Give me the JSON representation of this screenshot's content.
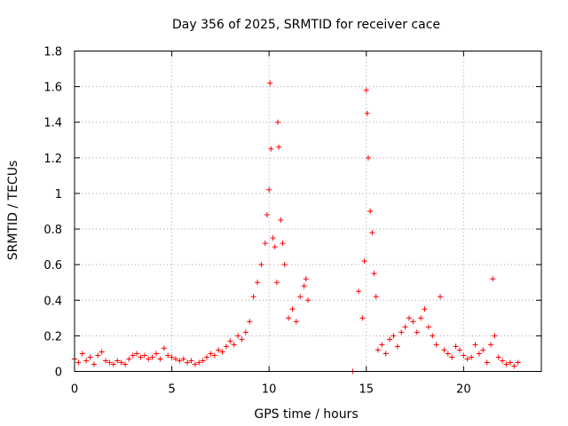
{
  "chart_data": {
    "type": "scatter",
    "title": "Day 356 of 2025, SRMTID for receiver cace",
    "xlabel": "GPS time / hours",
    "ylabel": "SRMTID / TECUs",
    "xlim": [
      0,
      24
    ],
    "ylim": [
      0,
      1.8
    ],
    "xticks": [
      0,
      5,
      10,
      15,
      20
    ],
    "xtick_labels": [
      "0",
      "5",
      "10",
      "15",
      "20"
    ],
    "yticks": [
      0,
      0.2,
      0.4,
      0.6,
      0.8,
      1,
      1.2,
      1.4,
      1.6,
      1.8
    ],
    "ytick_labels": [
      "0",
      "0.2",
      "0.4",
      "0.6",
      "0.8",
      "1",
      "1.2",
      "1.4",
      "1.6",
      "1.8"
    ],
    "grid": true,
    "legend": "none",
    "marker": "+",
    "color": "#ff0000",
    "series": [
      {
        "name": "SRMTID",
        "x": [
          0.0,
          0.2,
          0.4,
          0.6,
          0.8,
          1.0,
          1.2,
          1.4,
          1.6,
          1.8,
          2.0,
          2.2,
          2.4,
          2.6,
          2.8,
          3.0,
          3.2,
          3.4,
          3.6,
          3.8,
          4.0,
          4.2,
          4.4,
          4.6,
          4.8,
          5.0,
          5.2,
          5.4,
          5.6,
          5.8,
          6.0,
          6.2,
          6.4,
          6.6,
          6.8,
          7.0,
          7.2,
          7.4,
          7.6,
          7.8,
          8.0,
          8.2,
          8.4,
          8.6,
          8.8,
          9.0,
          9.2,
          9.4,
          9.6,
          9.8,
          9.9,
          10.0,
          10.05,
          10.1,
          10.2,
          10.3,
          10.4,
          10.45,
          10.5,
          10.6,
          10.7,
          10.8,
          11.0,
          11.2,
          11.4,
          11.6,
          11.8,
          11.9,
          12.0,
          14.3,
          14.6,
          14.8,
          14.9,
          15.0,
          15.05,
          15.1,
          15.2,
          15.3,
          15.4,
          15.5,
          15.6,
          15.8,
          16.0,
          16.2,
          16.4,
          16.6,
          16.8,
          17.0,
          17.2,
          17.4,
          17.6,
          17.8,
          18.0,
          18.2,
          18.4,
          18.6,
          18.8,
          19.0,
          19.2,
          19.4,
          19.6,
          19.8,
          20.0,
          20.2,
          20.4,
          20.6,
          20.8,
          21.0,
          21.2,
          21.4,
          21.5,
          21.6,
          21.8,
          22.0,
          22.2,
          22.4,
          22.6,
          22.8
        ],
        "y": [
          0.07,
          0.05,
          0.1,
          0.06,
          0.08,
          0.04,
          0.09,
          0.11,
          0.06,
          0.05,
          0.04,
          0.06,
          0.05,
          0.04,
          0.07,
          0.09,
          0.1,
          0.08,
          0.09,
          0.07,
          0.08,
          0.1,
          0.07,
          0.13,
          0.09,
          0.08,
          0.07,
          0.06,
          0.07,
          0.05,
          0.06,
          0.04,
          0.05,
          0.06,
          0.08,
          0.1,
          0.09,
          0.12,
          0.11,
          0.14,
          0.17,
          0.15,
          0.2,
          0.18,
          0.22,
          0.28,
          0.42,
          0.5,
          0.6,
          0.72,
          0.88,
          1.02,
          1.62,
          1.25,
          0.75,
          0.7,
          0.5,
          1.4,
          1.26,
          0.85,
          0.72,
          0.6,
          0.3,
          0.35,
          0.28,
          0.42,
          0.48,
          0.52,
          0.4,
          0.0,
          0.45,
          0.3,
          0.62,
          1.58,
          1.45,
          1.2,
          0.9,
          0.78,
          0.55,
          0.42,
          0.12,
          0.15,
          0.1,
          0.18,
          0.2,
          0.14,
          0.22,
          0.25,
          0.3,
          0.28,
          0.22,
          0.3,
          0.35,
          0.25,
          0.2,
          0.15,
          0.42,
          0.12,
          0.1,
          0.08,
          0.14,
          0.12,
          0.09,
          0.07,
          0.08,
          0.15,
          0.1,
          0.12,
          0.05,
          0.15,
          0.52,
          0.2,
          0.08,
          0.06,
          0.04,
          0.05,
          0.03,
          0.05
        ]
      }
    ]
  }
}
